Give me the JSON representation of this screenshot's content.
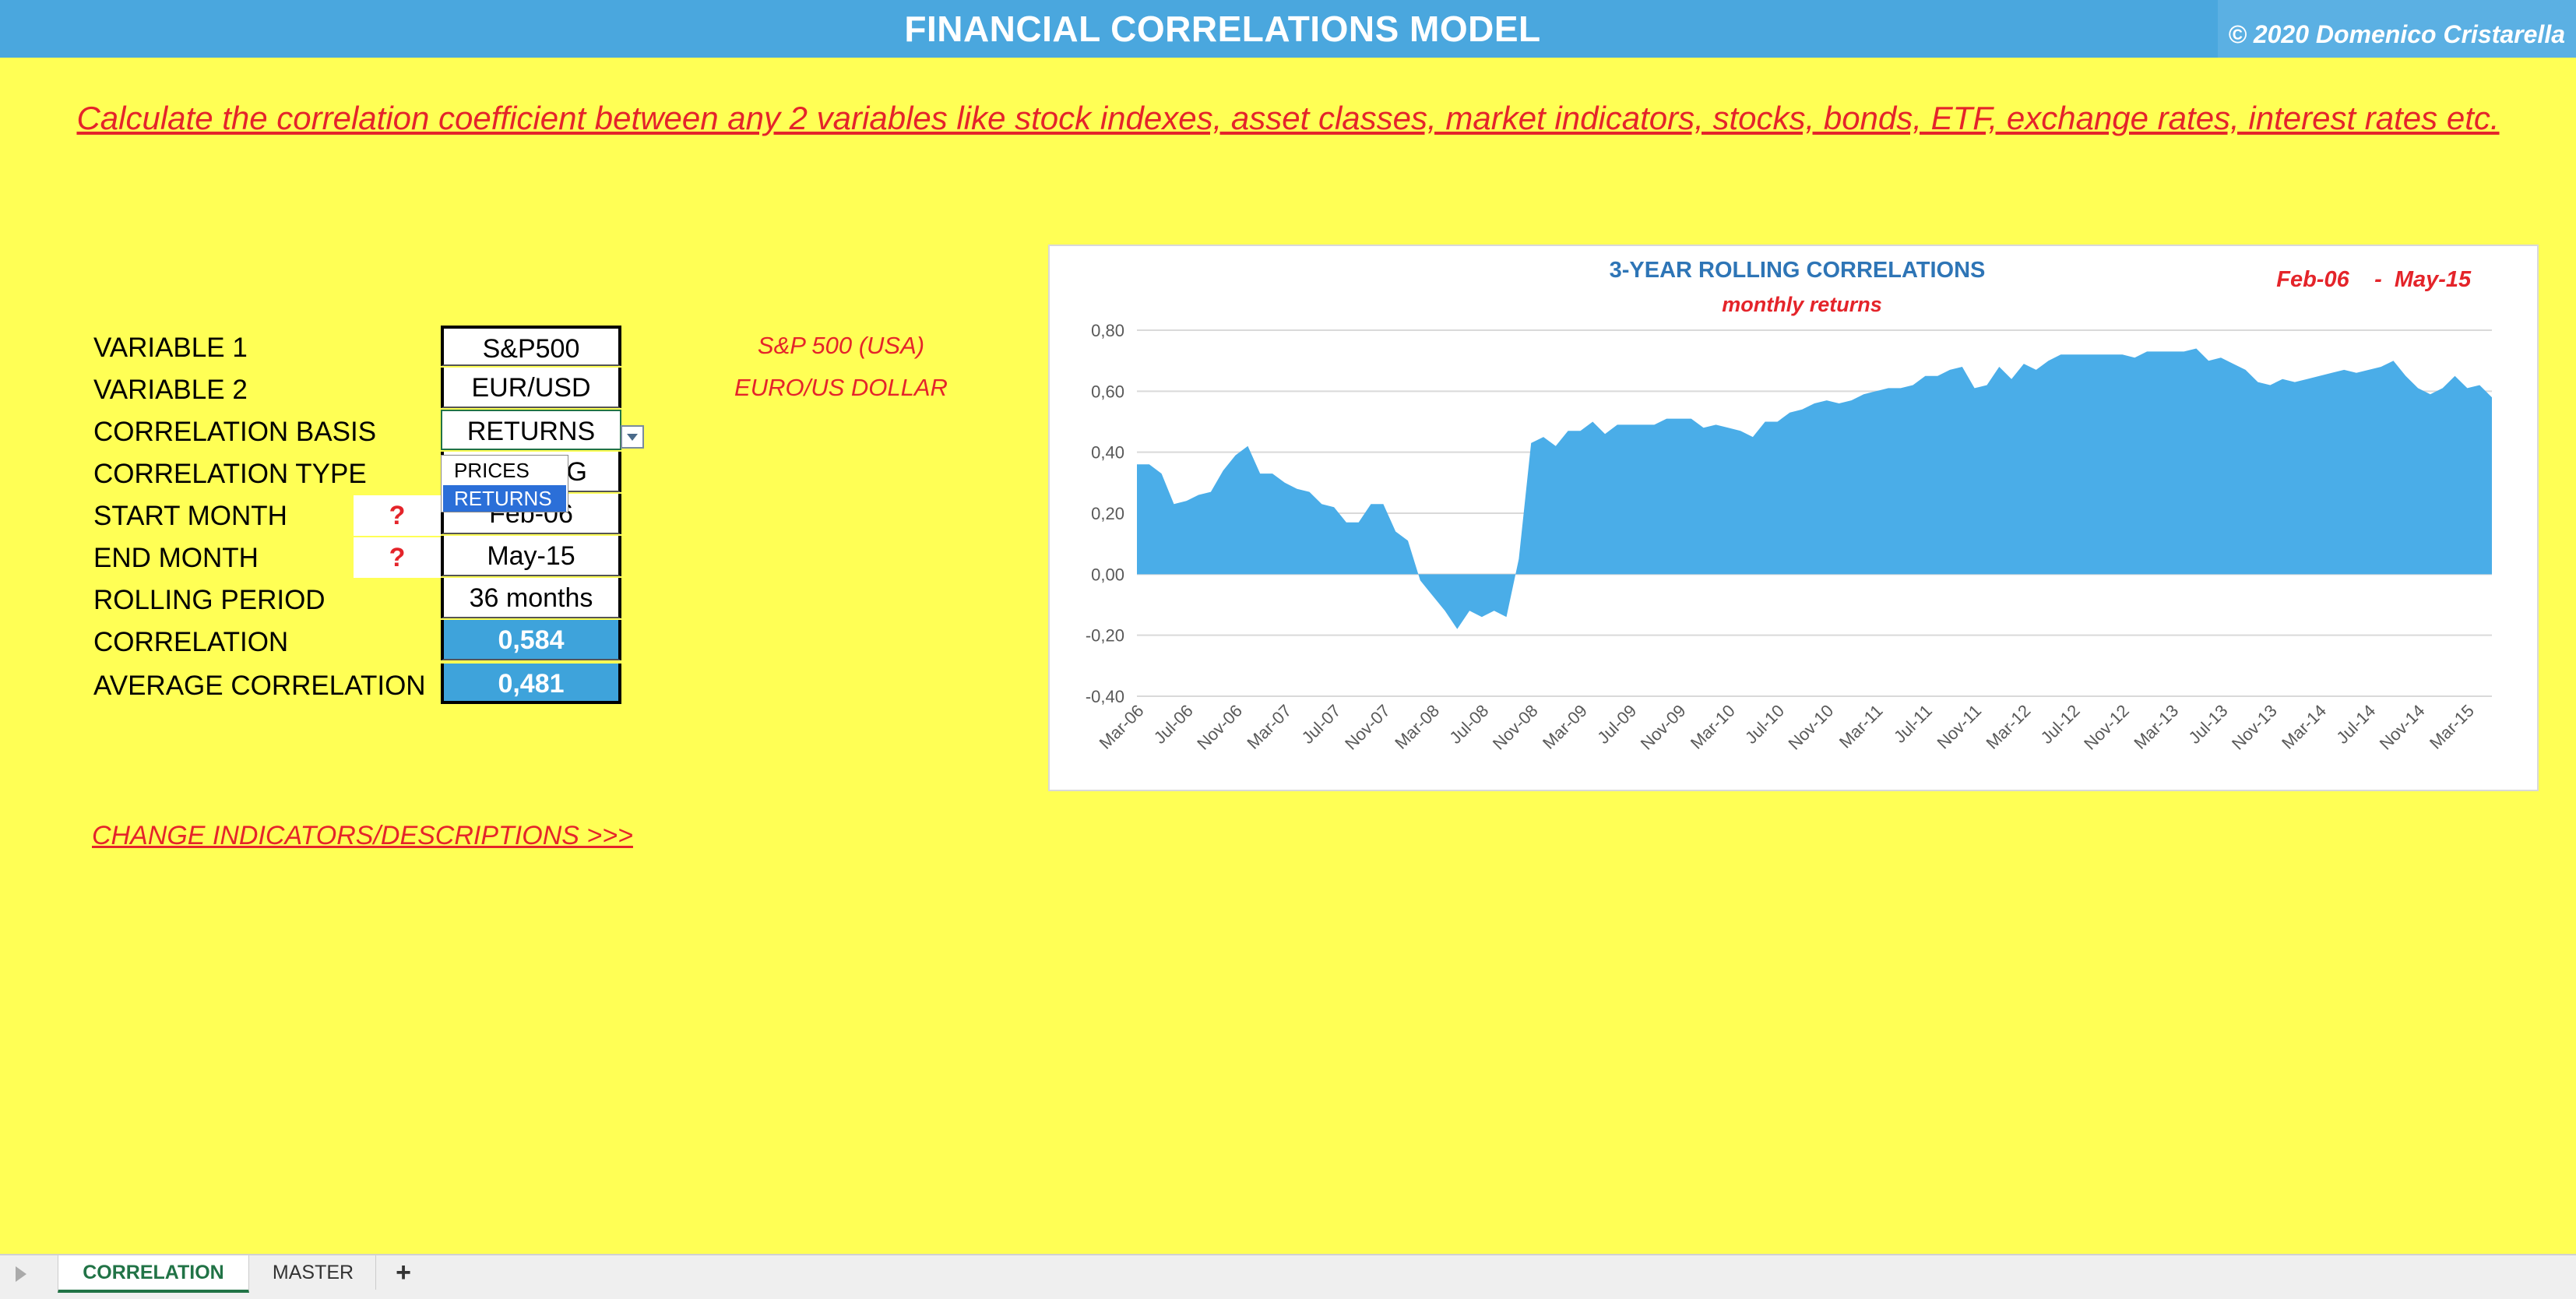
{
  "header": {
    "title": "FINANCIAL CORRELATIONS MODEL",
    "copyright": "© 2020 Domenico Cristarella"
  },
  "tagline": "Calculate the correlation coefficient between any 2 variables like stock indexes, asset classes, market indicators, stocks, bonds, ETF, exchange rates, interest rates etc.",
  "params": {
    "variable1": {
      "label": "VARIABLE 1",
      "value": "S&P500",
      "description": "S&P 500 (USA)"
    },
    "variable2": {
      "label": "VARIABLE 2",
      "value": "EUR/USD",
      "description": "EURO/US DOLLAR"
    },
    "basis": {
      "label": "CORRELATION BASIS",
      "value": "RETURNS"
    },
    "type": {
      "label": "CORRELATION TYPE",
      "value_partial": "G"
    },
    "start": {
      "label": "START MONTH",
      "value": "Feb-06",
      "help": "?"
    },
    "end": {
      "label": "END MONTH",
      "value": "May-15",
      "help": "?"
    },
    "rolling": {
      "label": "ROLLING PERIOD",
      "value": "36 months"
    },
    "correlation": {
      "label": "CORRELATION",
      "value": "0,584"
    },
    "average": {
      "label": "AVERAGE CORRELATION",
      "value": "0,481"
    }
  },
  "dropdown": {
    "options": [
      "PRICES",
      "RETURNS"
    ],
    "selected": "RETURNS"
  },
  "link": "CHANGE INDICATORS/DESCRIPTIONS >>>",
  "chart_data": {
    "type": "area",
    "title": "3-YEAR ROLLING CORRELATIONS",
    "subtitle": "monthly returns",
    "range_start": "Feb-06",
    "range_sep": "-",
    "range_end": "May-15",
    "ylim": [
      -0.4,
      0.8
    ],
    "yticks": [
      "-0,40",
      "-0,20",
      "0,00",
      "0,20",
      "0,40",
      "0,60",
      "0,80"
    ],
    "ytick_values": [
      -0.4,
      -0.2,
      0,
      0.2,
      0.4,
      0.6,
      0.8
    ],
    "xticks": [
      "Mar-06",
      "Jul-06",
      "Nov-06",
      "Mar-07",
      "Jul-07",
      "Nov-07",
      "Mar-08",
      "Jul-08",
      "Nov-08",
      "Mar-09",
      "Jul-09",
      "Nov-09",
      "Mar-10",
      "Jul-10",
      "Nov-10",
      "Mar-11",
      "Jul-11",
      "Nov-11",
      "Mar-12",
      "Jul-12",
      "Nov-12",
      "Mar-13",
      "Jul-13",
      "Nov-13",
      "Mar-14",
      "Jul-14",
      "Nov-14",
      "Mar-15"
    ],
    "grid": true,
    "color": "#4AADE8",
    "x_start": "Mar-06",
    "values": [
      0.36,
      0.36,
      0.33,
      0.23,
      0.24,
      0.26,
      0.27,
      0.34,
      0.39,
      0.42,
      0.33,
      0.33,
      0.3,
      0.28,
      0.27,
      0.23,
      0.22,
      0.17,
      0.17,
      0.23,
      0.23,
      0.14,
      0.11,
      -0.02,
      -0.07,
      -0.12,
      -0.18,
      -0.12,
      -0.14,
      -0.12,
      -0.14,
      0.05,
      0.43,
      0.45,
      0.42,
      0.47,
      0.47,
      0.5,
      0.46,
      0.49,
      0.49,
      0.49,
      0.49,
      0.51,
      0.51,
      0.51,
      0.48,
      0.49,
      0.48,
      0.47,
      0.45,
      0.5,
      0.5,
      0.53,
      0.54,
      0.56,
      0.57,
      0.56,
      0.57,
      0.59,
      0.6,
      0.61,
      0.61,
      0.62,
      0.65,
      0.65,
      0.67,
      0.68,
      0.61,
      0.62,
      0.68,
      0.64,
      0.69,
      0.67,
      0.7,
      0.72,
      0.72,
      0.72,
      0.72,
      0.72,
      0.72,
      0.71,
      0.73,
      0.73,
      0.73,
      0.73,
      0.74,
      0.7,
      0.71,
      0.69,
      0.67,
      0.63,
      0.62,
      0.64,
      0.63,
      0.64,
      0.65,
      0.66,
      0.67,
      0.66,
      0.67,
      0.68,
      0.7,
      0.65,
      0.61,
      0.59,
      0.61,
      0.65,
      0.61,
      0.62,
      0.58
    ]
  },
  "tabs": {
    "correlation": "CORRELATION",
    "master": "MASTER",
    "add": "+"
  }
}
